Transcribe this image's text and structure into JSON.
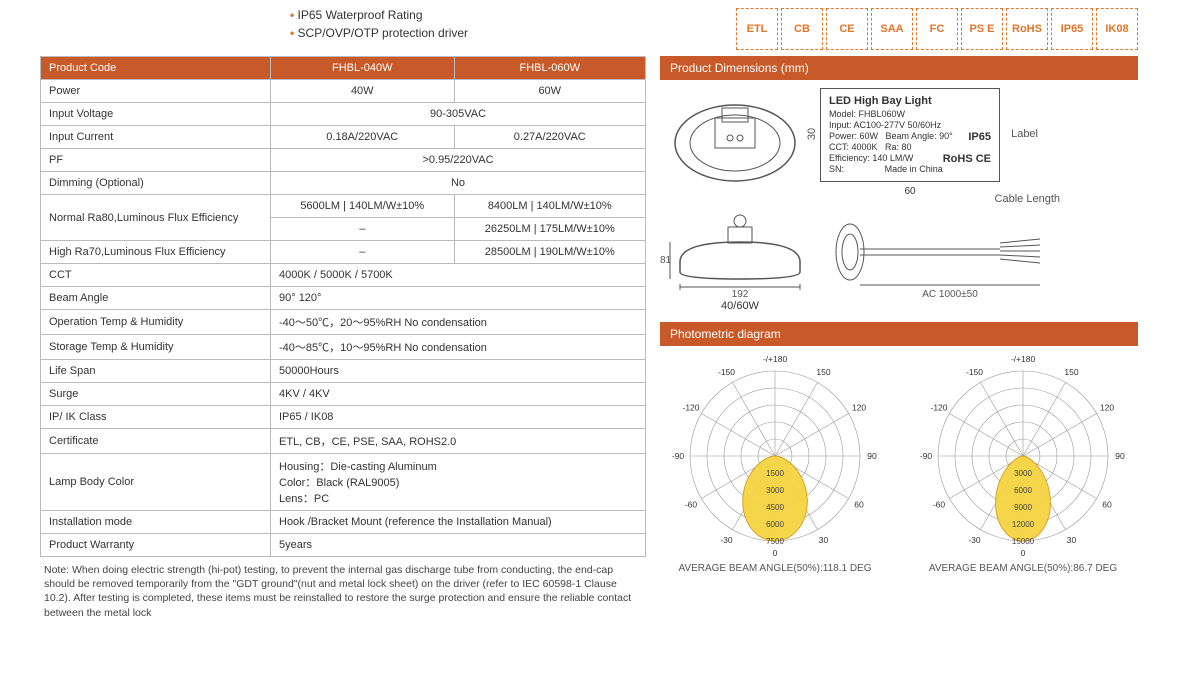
{
  "features": [
    "IP65 Waterproof Rating",
    "SCP/OVP/OTP protection driver"
  ],
  "cert_icons": [
    "ETL",
    "CB",
    "CE",
    "SAA",
    "FC",
    "PS\nE",
    "RoHS",
    "IP65",
    "IK08"
  ],
  "spec_header": {
    "c0": "Product Code",
    "c1": "FHBL-040W",
    "c2": "FHBL-060W"
  },
  "spec_rows": [
    {
      "label": "Power",
      "c1": "40W",
      "c2": "60W"
    },
    {
      "label": "Input Voltage",
      "span": "90-305VAC"
    },
    {
      "label": "Input Current",
      "c1": "0.18A/220VAC",
      "c2": "0.27A/220VAC"
    },
    {
      "label": "PF",
      "span": ">0.95/220VAC"
    },
    {
      "label": "Dimming (Optional)",
      "span": "No"
    },
    {
      "label": "Normal Ra80,Luminous Flux Efficiency",
      "rowspan": 2,
      "c1": "5600LM  | 140LM/W±10%",
      "c2": "8400LM  | 140LM/W±10%"
    },
    {
      "c1": "–",
      "c2": "26250LM  | 175LM/W±10%"
    },
    {
      "label": "High Ra70,Luminous Flux Efficiency",
      "c1": "–",
      "c2": "28500LM  | 190LM/W±10%"
    },
    {
      "label": "CCT",
      "full": "4000K / 5000K / 5700K"
    },
    {
      "label": "Beam Angle",
      "full": "90°  120°"
    },
    {
      "label": "Operation Temp & Humidity",
      "full": "-40～50℃，20～95%RH No condensation"
    },
    {
      "label": "Storage Temp & Humidity",
      "full": "-40～85℃，10～95%RH No condensation"
    },
    {
      "label": "Life Span",
      "full": "50000Hours"
    },
    {
      "label": "Surge",
      "full": "4KV / 4KV"
    },
    {
      "label": "IP/ IK Class",
      "full": "IP65 / IK08"
    },
    {
      "label": "Certificate",
      "full": "ETL, CB，CE, PSE, SAA, ROHS2.0"
    },
    {
      "label": "Lamp Body Color",
      "lines": [
        "Housing：Die-casting Aluminum",
        "Color：Black (RAL9005)",
        "Lens：PC"
      ]
    },
    {
      "label": "Installation mode",
      "full": "Hook /Bracket Mount (reference the Installation Manual)"
    },
    {
      "label": "Product Warranty",
      "full": "5years"
    }
  ],
  "note": "Note: When doing electric strength (hi-pot) testing, to prevent the internal gas discharge tube from conducting, the end-cap should be removed temporarily from the \"GDT ground\"(nut and metal lock sheet) on the driver (refer to IEC 60598-1 Clause 10.2). After testing is completed, these items must be reinstalled to restore the surge protection and ensure the reliable contact between the metal lock",
  "sect_dims": "Product Dimensions (mm)",
  "sect_photo": "Photometric diagram",
  "label_box": {
    "title": "LED High Bay Light",
    "model": "Model:  FHBL060W",
    "input": "Input:  AC100-277V 50/60Hz",
    "power": "Power:  60W",
    "beam": "Beam Angle: 90°",
    "cct": "CCT: 4000K",
    "ra": "Ra: 80",
    "eff": "Efficiency: 140 LM/W",
    "sn": "SN:",
    "made": "Made in China",
    "ip": "IP65",
    "rohs": "RoHS CE"
  },
  "dim_texts": {
    "w192": "192",
    "h81": "81",
    "h30": "30",
    "w60": "60",
    "model": "40/60W",
    "ac": "AC 1000±50",
    "label": "Label",
    "cable": "Cable Length"
  },
  "polar": {
    "angles": [
      "-/+180",
      "-150",
      "-120",
      "-90",
      "-60",
      "-30",
      "0",
      "30",
      "60",
      "90",
      "120",
      "150"
    ],
    "left": {
      "rings": [
        "1500",
        "3000",
        "4500",
        "6000",
        "7500"
      ],
      "avg": "AVERAGE BEAM ANGLE(50%):118.1 DEG",
      "beam_half_deg": 59
    },
    "right": {
      "rings": [
        "3000",
        "6000",
        "9000",
        "12000",
        "15000"
      ],
      "avg": "AVERAGE BEAM ANGLE(50%):86.7 DEG",
      "beam_half_deg": 43
    }
  },
  "colors": {
    "accent": "#c85a2a",
    "icon": "#e2762a",
    "beam_fill": "#f5d442",
    "beam_stroke": "#d4a020",
    "grid": "#999"
  }
}
